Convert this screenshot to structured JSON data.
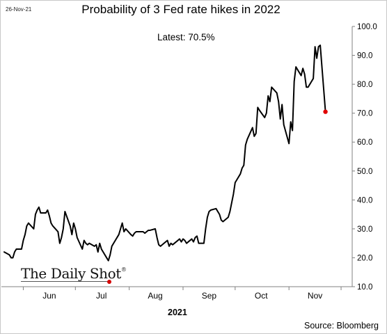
{
  "header": {
    "date_stamp": "26-Nov-21",
    "title": "Probability of 3 Fed rate hikes in 2022",
    "annotation": "Latest:  70.5%"
  },
  "footer": {
    "year_label": "2021",
    "source": "Source: Bloomberg",
    "logo_text": "The Daily Shot",
    "logo_mark": "®"
  },
  "colors": {
    "line": "#000000",
    "latest_marker": "#e00000",
    "axis": "#808080"
  },
  "chart_data": {
    "type": "line",
    "title": "Probability of 3 Fed rate hikes in 2022",
    "xlabel": "2021",
    "ylabel": "",
    "ylim": [
      10,
      100
    ],
    "y_ticks": [
      "10.0",
      "20.0",
      "30.0",
      "40.0",
      "50.0",
      "60.0",
      "70.0",
      "80.0",
      "90.0",
      "100.0"
    ],
    "x_tick_labels": [
      "Jun",
      "Jul",
      "Aug",
      "Sep",
      "Oct",
      "Nov"
    ],
    "x_range": [
      "2021-05-21",
      "2021-12-07"
    ],
    "grid": false,
    "series": [
      {
        "name": "",
        "points": [
          [
            "2021-05-21",
            22
          ],
          [
            "2021-05-24",
            21
          ],
          [
            "2021-05-25",
            20
          ],
          [
            "2021-05-26",
            20
          ],
          [
            "2021-05-27",
            22
          ],
          [
            "2021-05-28",
            23
          ],
          [
            "2021-05-31",
            23
          ],
          [
            "2021-06-01",
            26
          ],
          [
            "2021-06-02",
            28
          ],
          [
            "2021-06-03",
            31
          ],
          [
            "2021-06-04",
            32
          ],
          [
            "2021-06-07",
            30
          ],
          [
            "2021-06-08",
            35
          ],
          [
            "2021-06-09",
            36.5
          ],
          [
            "2021-06-10",
            37.5
          ],
          [
            "2021-06-11",
            35.5
          ],
          [
            "2021-06-14",
            35.5
          ],
          [
            "2021-06-15",
            36.5
          ],
          [
            "2021-06-16",
            34.5
          ],
          [
            "2021-06-17",
            32
          ],
          [
            "2021-06-18",
            31
          ],
          [
            "2021-06-21",
            29
          ],
          [
            "2021-06-22",
            25
          ],
          [
            "2021-06-23",
            27
          ],
          [
            "2021-06-24",
            30
          ],
          [
            "2021-06-25",
            36
          ],
          [
            "2021-06-28",
            31
          ],
          [
            "2021-06-29",
            28
          ],
          [
            "2021-06-30",
            32
          ],
          [
            "2021-07-01",
            30
          ],
          [
            "2021-07-02",
            27
          ],
          [
            "2021-07-05",
            23
          ],
          [
            "2021-07-06",
            26
          ],
          [
            "2021-07-07",
            25
          ],
          [
            "2021-07-08",
            24.5
          ],
          [
            "2021-07-09",
            25
          ],
          [
            "2021-07-12",
            24
          ],
          [
            "2021-07-13",
            24.5
          ],
          [
            "2021-07-14",
            22
          ],
          [
            "2021-07-15",
            25
          ],
          [
            "2021-07-16",
            23
          ],
          [
            "2021-07-19",
            20
          ],
          [
            "2021-07-20",
            19
          ],
          [
            "2021-07-21",
            21
          ],
          [
            "2021-07-22",
            24
          ],
          [
            "2021-07-23",
            25
          ],
          [
            "2021-07-26",
            28
          ],
          [
            "2021-07-27",
            30
          ],
          [
            "2021-07-28",
            32
          ],
          [
            "2021-07-29",
            29
          ],
          [
            "2021-07-30",
            30
          ],
          [
            "2021-08-02",
            28
          ],
          [
            "2021-08-03",
            27.5
          ],
          [
            "2021-08-04",
            28.5
          ],
          [
            "2021-08-05",
            29
          ],
          [
            "2021-08-06",
            29
          ],
          [
            "2021-08-09",
            29
          ],
          [
            "2021-08-10",
            28.5
          ],
          [
            "2021-08-11",
            29
          ],
          [
            "2021-08-12",
            29.5
          ],
          [
            "2021-08-13",
            29.5
          ],
          [
            "2021-08-16",
            30
          ],
          [
            "2021-08-17",
            27
          ],
          [
            "2021-08-18",
            24.5
          ],
          [
            "2021-08-19",
            24
          ],
          [
            "2021-08-20",
            24.5
          ],
          [
            "2021-08-23",
            26
          ],
          [
            "2021-08-24",
            24
          ],
          [
            "2021-08-25",
            25
          ],
          [
            "2021-08-26",
            24.5
          ],
          [
            "2021-08-27",
            25
          ],
          [
            "2021-08-30",
            26.5
          ],
          [
            "2021-08-31",
            25.5
          ],
          [
            "2021-09-01",
            26.5
          ],
          [
            "2021-09-02",
            26
          ],
          [
            "2021-09-03",
            25
          ],
          [
            "2021-09-06",
            26.5
          ],
          [
            "2021-09-07",
            25.5
          ],
          [
            "2021-09-08",
            27
          ],
          [
            "2021-09-09",
            27.5
          ],
          [
            "2021-09-10",
            25
          ],
          [
            "2021-09-13",
            25
          ],
          [
            "2021-09-14",
            30
          ],
          [
            "2021-09-15",
            34
          ],
          [
            "2021-09-16",
            36
          ],
          [
            "2021-09-17",
            36.5
          ],
          [
            "2021-09-20",
            37
          ],
          [
            "2021-09-21",
            36
          ],
          [
            "2021-09-22",
            35
          ],
          [
            "2021-09-23",
            33
          ],
          [
            "2021-09-24",
            32.5
          ],
          [
            "2021-09-27",
            34
          ],
          [
            "2021-09-28",
            36
          ],
          [
            "2021-09-29",
            39
          ],
          [
            "2021-09-30",
            42
          ],
          [
            "2021-10-01",
            46
          ],
          [
            "2021-10-04",
            49
          ],
          [
            "2021-10-05",
            51
          ],
          [
            "2021-10-06",
            52
          ],
          [
            "2021-10-07",
            59
          ],
          [
            "2021-10-08",
            61
          ],
          [
            "2021-10-11",
            65
          ],
          [
            "2021-10-12",
            62
          ],
          [
            "2021-10-13",
            63
          ],
          [
            "2021-10-14",
            72
          ],
          [
            "2021-10-15",
            71
          ],
          [
            "2021-10-18",
            68.5
          ],
          [
            "2021-10-19",
            70
          ],
          [
            "2021-10-20",
            76
          ],
          [
            "2021-10-21",
            74
          ],
          [
            "2021-10-22",
            79
          ],
          [
            "2021-10-25",
            77
          ],
          [
            "2021-10-26",
            74
          ],
          [
            "2021-10-27",
            68
          ],
          [
            "2021-10-28",
            73
          ],
          [
            "2021-10-29",
            66
          ],
          [
            "2021-11-01",
            59.5
          ],
          [
            "2021-11-02",
            67
          ],
          [
            "2021-11-03",
            64
          ],
          [
            "2021-11-04",
            81
          ],
          [
            "2021-11-05",
            86
          ],
          [
            "2021-11-08",
            83
          ],
          [
            "2021-11-09",
            85.5
          ],
          [
            "2021-11-10",
            83.5
          ],
          [
            "2021-11-11",
            79
          ],
          [
            "2021-11-12",
            79
          ],
          [
            "2021-11-15",
            82
          ],
          [
            "2021-11-16",
            93
          ],
          [
            "2021-11-17",
            89
          ],
          [
            "2021-11-18",
            93
          ],
          [
            "2021-11-19",
            93.5
          ],
          [
            "2021-11-22",
            70.5
          ]
        ]
      }
    ],
    "latest_value": 70.5,
    "latest_date": "2021-11-22"
  }
}
